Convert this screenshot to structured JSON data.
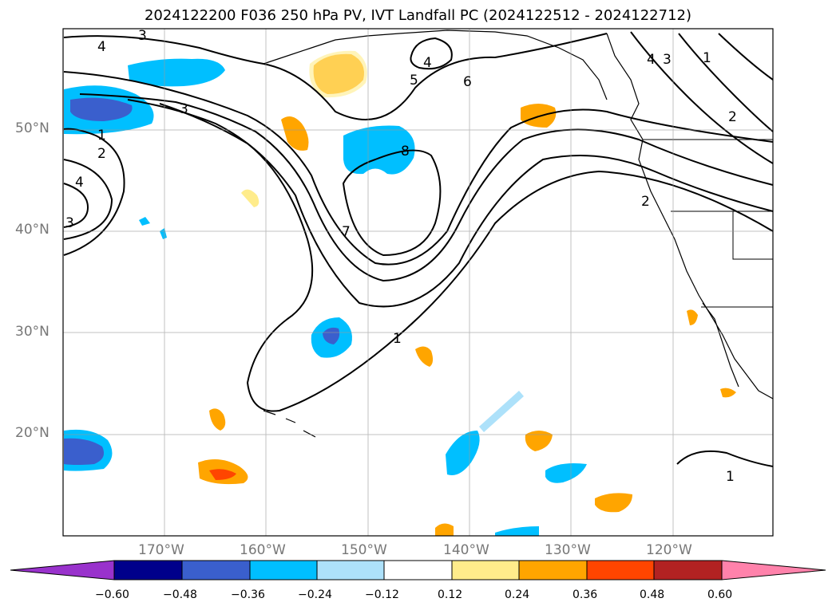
{
  "title": "2024122200 F036 250 hPa PV, IVT Landfall PC (2024122512 - 2024122712)",
  "lat_labels": [
    "50°N",
    "40°N",
    "30°N",
    "20°N"
  ],
  "lon_labels": [
    "170°W",
    "160°W",
    "150°W",
    "140°W",
    "130°W",
    "120°W"
  ],
  "contour_labels": [
    "1",
    "2",
    "3",
    "4",
    "5",
    "6",
    "7",
    "8"
  ],
  "colorbar": {
    "ticks": [
      "−0.60",
      "−0.48",
      "−0.36",
      "−0.24",
      "−0.12",
      "0.12",
      "0.24",
      "0.36",
      "0.48",
      "0.60"
    ],
    "colors": [
      "#9932CC",
      "#00008B",
      "#3A5FCD",
      "#00BFFF",
      "#ADE1FA",
      "#FFFFFF",
      "#FFEC8B",
      "#FFA500",
      "#FF4500",
      "#B22222",
      "#FF82AB"
    ]
  },
  "map_extent": {
    "lon_min": -180,
    "lon_max": -110,
    "lat_min": 10,
    "lat_max": 60
  }
}
